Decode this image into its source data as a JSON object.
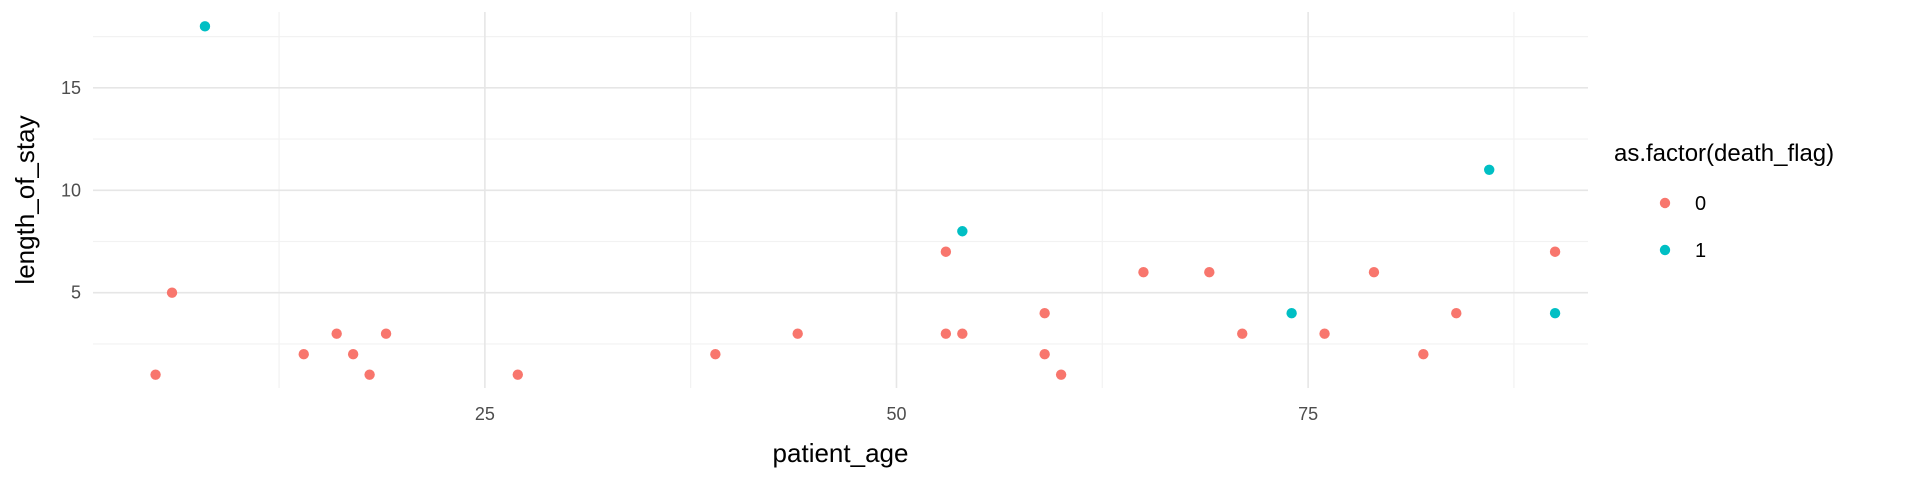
{
  "chart_data": {
    "type": "scatter",
    "xlabel": "patient_age",
    "ylabel": "length_of_stay",
    "xlim": [
      1.2,
      92.0
    ],
    "ylim": [
      0.35,
      18.7
    ],
    "x_ticks": [
      25,
      50,
      75
    ],
    "y_ticks": [
      5,
      10,
      15
    ],
    "grid": true,
    "legend": {
      "title": "as.factor(death_flag)",
      "placement": "right"
    },
    "series": [
      {
        "name": "0",
        "color": "#F8766D",
        "points": [
          {
            "x": 5,
            "y": 1
          },
          {
            "x": 6,
            "y": 5
          },
          {
            "x": 14,
            "y": 2
          },
          {
            "x": 16,
            "y": 3
          },
          {
            "x": 17,
            "y": 2
          },
          {
            "x": 18,
            "y": 1
          },
          {
            "x": 19,
            "y": 3
          },
          {
            "x": 27,
            "y": 1
          },
          {
            "x": 39,
            "y": 2
          },
          {
            "x": 44,
            "y": 3
          },
          {
            "x": 53,
            "y": 7
          },
          {
            "x": 53,
            "y": 3
          },
          {
            "x": 54,
            "y": 3
          },
          {
            "x": 59,
            "y": 4
          },
          {
            "x": 59,
            "y": 2
          },
          {
            "x": 60,
            "y": 1
          },
          {
            "x": 65,
            "y": 6
          },
          {
            "x": 69,
            "y": 6
          },
          {
            "x": 71,
            "y": 3
          },
          {
            "x": 76,
            "y": 3
          },
          {
            "x": 79,
            "y": 6
          },
          {
            "x": 82,
            "y": 2
          },
          {
            "x": 84,
            "y": 4
          },
          {
            "x": 90,
            "y": 7
          }
        ]
      },
      {
        "name": "1",
        "color": "#00BFC4",
        "points": [
          {
            "x": 8,
            "y": 18
          },
          {
            "x": 54,
            "y": 8
          },
          {
            "x": 74,
            "y": 4
          },
          {
            "x": 86,
            "y": 11
          },
          {
            "x": 90,
            "y": 4
          }
        ]
      }
    ]
  }
}
